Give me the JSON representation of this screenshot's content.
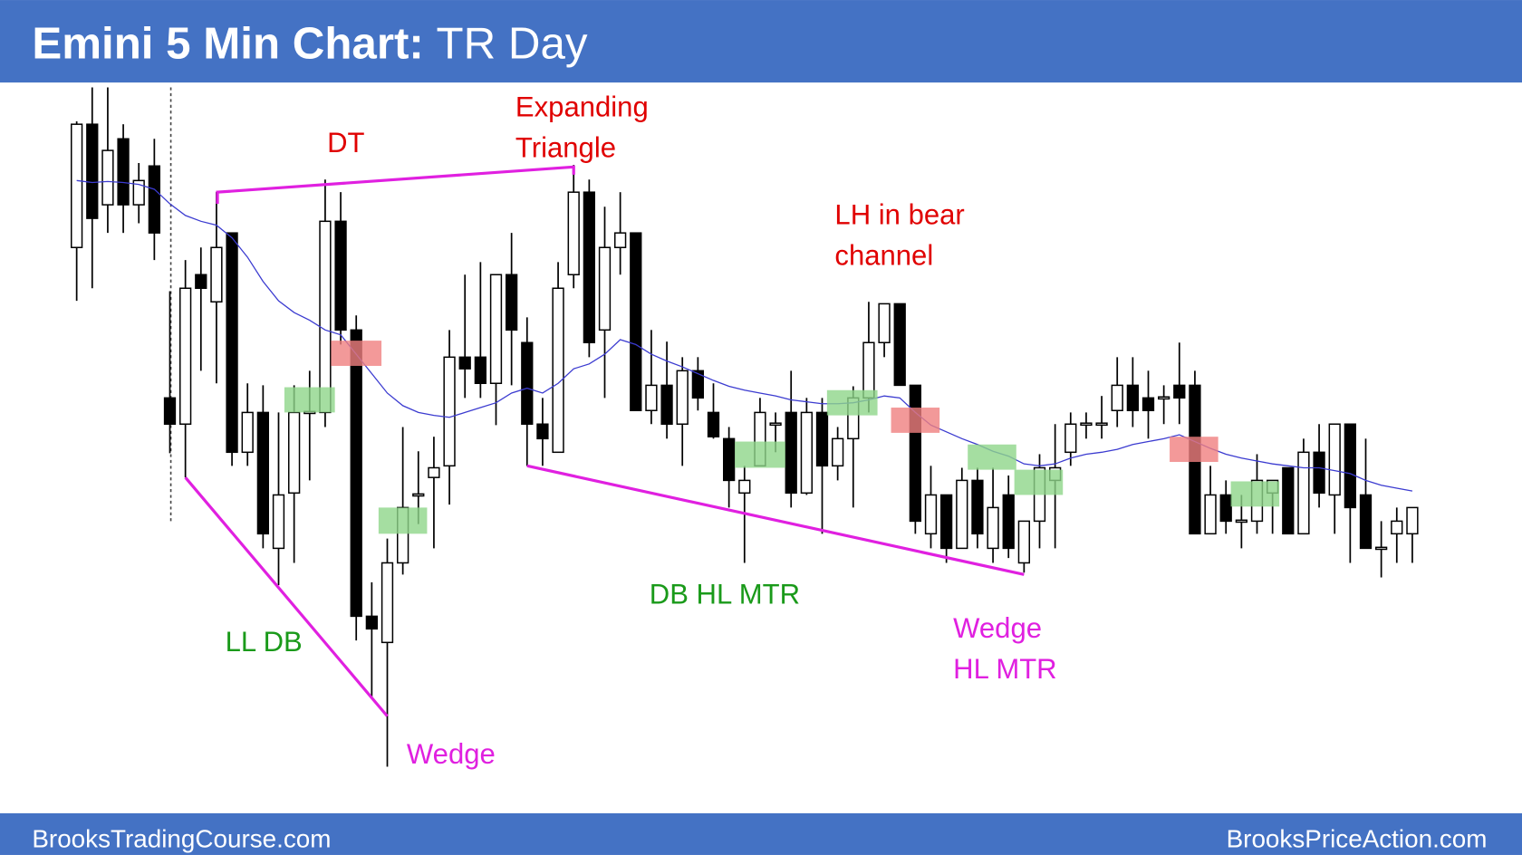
{
  "chart_data": {
    "type": "candlestick",
    "title": "Emini 5 Min Chart:",
    "subtitle": "TR Day",
    "footer_left": "BrooksTradingCourse.com",
    "footer_right": "BrooksPriceAction.com",
    "ylim": [
      42,
      796
    ],
    "up_color": "#ffffff",
    "down_color": "#000000",
    "open": [
      625,
      752,
      669,
      737,
      669,
      709,
      470,
      443,
      597,
      569,
      640,
      414,
      455,
      315,
      372,
      455,
      455,
      652,
      540,
      245,
      218,
      300,
      370,
      388,
      400,
      512,
      512,
      485,
      597,
      527,
      443,
      414,
      597,
      682,
      540,
      625,
      640,
      457,
      483,
      443,
      498,
      455,
      428,
      372,
      400,
      443,
      455,
      372,
      455,
      400,
      428,
      470,
      527,
      567,
      483,
      330,
      370,
      315,
      385,
      315,
      370,
      300,
      343,
      385,
      414,
      443,
      443,
      457,
      483,
      470,
      470,
      483,
      483,
      330,
      370,
      343,
      343,
      372,
      398,
      330,
      414,
      370,
      443,
      370,
      315,
      330,
      330
    ],
    "high": [
      755,
      790,
      790,
      752,
      712,
      737,
      580,
      612,
      625,
      682,
      640,
      485,
      483,
      455,
      483,
      498,
      695,
      682,
      555,
      280,
      325,
      440,
      415,
      430,
      540,
      597,
      610,
      597,
      640,
      553,
      470,
      610,
      710,
      695,
      667,
      682,
      640,
      540,
      528,
      512,
      512,
      485,
      440,
      400,
      470,
      455,
      498,
      470,
      470,
      440,
      482,
      569,
      567,
      567,
      483,
      400,
      370,
      398,
      398,
      398,
      390,
      343,
      412,
      443,
      455,
      455,
      472,
      512,
      512,
      498,
      483,
      527,
      498,
      400,
      385,
      370,
      412,
      385,
      398,
      428,
      443,
      443,
      443,
      428,
      343,
      357,
      357
    ],
    "low": [
      570,
      583,
      640,
      640,
      650,
      612,
      413,
      388,
      498,
      485,
      400,
      400,
      315,
      277,
      300,
      385,
      440,
      525,
      220,
      162,
      90,
      288,
      340,
      315,
      360,
      470,
      470,
      442,
      483,
      400,
      400,
      414,
      583,
      512,
      470,
      597,
      457,
      443,
      428,
      400,
      457,
      428,
      357,
      300,
      400,
      414,
      357,
      370,
      330,
      385,
      357,
      455,
      512,
      483,
      330,
      315,
      300,
      315,
      315,
      300,
      305,
      290,
      315,
      315,
      400,
      428,
      428,
      440,
      440,
      428,
      443,
      443,
      330,
      330,
      330,
      315,
      330,
      330,
      330,
      330,
      357,
      330,
      300,
      315,
      285,
      300,
      300
    ],
    "close": [
      752,
      655,
      725,
      669,
      694,
      640,
      443,
      583,
      583,
      625,
      414,
      455,
      330,
      370,
      455,
      455,
      652,
      540,
      245,
      232,
      300,
      357,
      370,
      398,
      512,
      500,
      485,
      597,
      540,
      443,
      428,
      583,
      682,
      527,
      625,
      640,
      457,
      483,
      443,
      498,
      470,
      430,
      385,
      385,
      455,
      443,
      372,
      455,
      400,
      428,
      470,
      527,
      567,
      483,
      343,
      370,
      315,
      385,
      330,
      357,
      315,
      343,
      398,
      398,
      443,
      443,
      443,
      483,
      457,
      457,
      470,
      470,
      330,
      370,
      343,
      343,
      385,
      385,
      330,
      414,
      372,
      443,
      357,
      315,
      315,
      343,
      357
    ],
    "moving_average": {
      "color": "#3b3bd0",
      "values": [
        694,
        692,
        693,
        692,
        690,
        685,
        670,
        658,
        652,
        648,
        635,
        615,
        590,
        570,
        558,
        550,
        540,
        535,
        515,
        495,
        475,
        462,
        455,
        452,
        450,
        455,
        460,
        465,
        475,
        480,
        475,
        485,
        500,
        505,
        515,
        530,
        525,
        515,
        508,
        502,
        495,
        488,
        482,
        478,
        475,
        472,
        468,
        466,
        464,
        464,
        465,
        468,
        472,
        470,
        455,
        442,
        435,
        428,
        422,
        415,
        410,
        402,
        400,
        402,
        408,
        412,
        414,
        417,
        422,
        425,
        428,
        432,
        425,
        418,
        412,
        408,
        405,
        402,
        400,
        398,
        398,
        395,
        392,
        385,
        380,
        377,
        374
      ]
    },
    "annotations": [
      {
        "lines": [
          "DT"
        ],
        "color": "#e00000"
      },
      {
        "lines": [
          "Expanding",
          "Triangle"
        ],
        "color": "#e00000"
      },
      {
        "lines": [
          "LH in bear",
          "channel"
        ],
        "color": "#e00000"
      },
      {
        "lines": [
          "LL DB"
        ],
        "color": "#1a9a1a"
      },
      {
        "lines": [
          "Wedge"
        ],
        "color": "#e020e0"
      },
      {
        "lines": [
          "DB HL MTR"
        ],
        "color": "#1a9a1a"
      },
      {
        "lines": [
          "Wedge",
          "HL MTR"
        ],
        "color": "#e020e0"
      }
    ]
  }
}
